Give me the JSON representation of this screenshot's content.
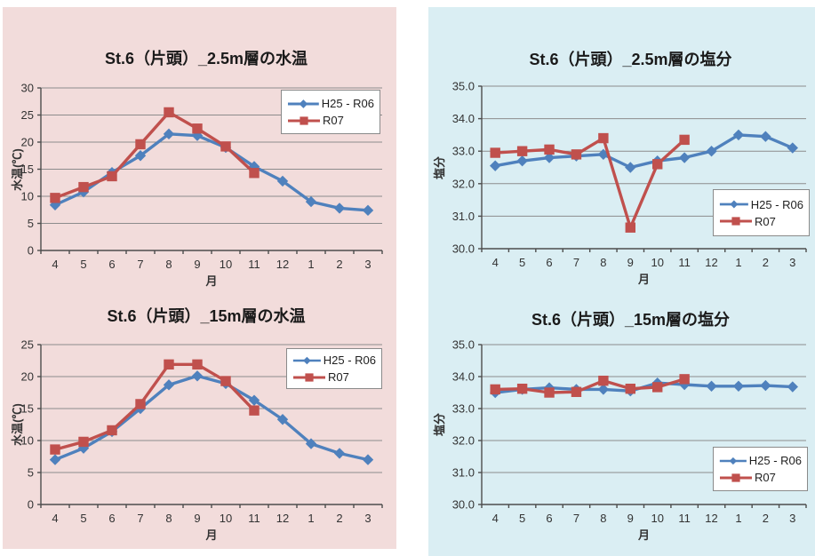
{
  "cards": [
    {
      "id": "water-temp",
      "background": "#F2DCDB"
    },
    {
      "id": "salinity",
      "background": "#DAEEF3"
    }
  ],
  "chart_data": [
    {
      "type": "line",
      "title": "St.6（片頭）_2.5m層の水温",
      "xlabel": "月",
      "ylabel": "水温(℃)",
      "categories": [
        "4",
        "5",
        "6",
        "7",
        "8",
        "9",
        "10",
        "11",
        "12",
        "1",
        "2",
        "3"
      ],
      "ylim": [
        0,
        30
      ],
      "y_ticks": [
        0,
        5,
        10,
        15,
        20,
        25,
        30
      ],
      "y_tick_labels": [
        "0",
        "5",
        "10",
        "15",
        "20",
        "25",
        "30"
      ],
      "grid": true,
      "legend_position": "top-right",
      "series": [
        {
          "name": "H25 - R06",
          "color": "#4F81BD",
          "marker": "diamond",
          "values": [
            8.4,
            10.8,
            14.4,
            17.5,
            21.5,
            21.2,
            19.0,
            15.5,
            12.8,
            9.0,
            7.8,
            7.4
          ]
        },
        {
          "name": "R07",
          "color": "#C0504D",
          "marker": "square",
          "values": [
            9.7,
            11.7,
            13.7,
            19.6,
            25.5,
            22.5,
            19.2,
            14.3,
            null,
            null,
            null,
            null
          ]
        }
      ]
    },
    {
      "type": "line",
      "title": "St.6（片頭）_15m層の水温",
      "xlabel": "月",
      "ylabel": "水温(℃)",
      "categories": [
        "4",
        "5",
        "6",
        "7",
        "8",
        "9",
        "10",
        "11",
        "12",
        "1",
        "2",
        "3"
      ],
      "ylim": [
        0,
        25
      ],
      "y_ticks": [
        0,
        5,
        10,
        15,
        20,
        25
      ],
      "y_tick_labels": [
        "0",
        "5",
        "10",
        "15",
        "20",
        "25"
      ],
      "grid": true,
      "legend_position": "top-right",
      "series": [
        {
          "name": "H25 - R06",
          "color": "#4F81BD",
          "marker": "diamond",
          "values": [
            7.0,
            8.8,
            11.4,
            15.0,
            18.7,
            20.1,
            18.9,
            16.3,
            13.3,
            9.5,
            8.0,
            7.0
          ]
        },
        {
          "name": "R07",
          "color": "#C0504D",
          "marker": "square",
          "values": [
            8.6,
            9.8,
            11.6,
            15.7,
            21.9,
            21.9,
            19.3,
            14.7,
            null,
            null,
            null,
            null
          ]
        }
      ]
    },
    {
      "type": "line",
      "title": "St.6（片頭）_2.5m層の塩分",
      "xlabel": "月",
      "ylabel": "塩分",
      "categories": [
        "4",
        "5",
        "6",
        "7",
        "8",
        "9",
        "10",
        "11",
        "12",
        "1",
        "2",
        "3"
      ],
      "ylim": [
        30,
        35
      ],
      "y_ticks": [
        30,
        31,
        32,
        33,
        34,
        35
      ],
      "y_tick_labels": [
        "30.0",
        "31.0",
        "32.0",
        "33.0",
        "34.0",
        "35.0"
      ],
      "grid": true,
      "legend_position": "mid-right",
      "series": [
        {
          "name": "H25 - R06",
          "color": "#4F81BD",
          "marker": "diamond",
          "values": [
            32.55,
            32.7,
            32.8,
            32.85,
            32.9,
            32.5,
            32.7,
            32.8,
            33.0,
            33.5,
            33.45,
            33.1
          ]
        },
        {
          "name": "R07",
          "color": "#C0504D",
          "marker": "square",
          "values": [
            32.95,
            33.0,
            33.05,
            32.9,
            33.4,
            30.65,
            32.6,
            33.35,
            null,
            null,
            null,
            null
          ]
        }
      ]
    },
    {
      "type": "line",
      "title": "St.6（片頭）_15m層の塩分",
      "xlabel": "月",
      "ylabel": "塩分",
      "categories": [
        "4",
        "5",
        "6",
        "7",
        "8",
        "9",
        "10",
        "11",
        "12",
        "1",
        "2",
        "3"
      ],
      "ylim": [
        30,
        35
      ],
      "y_ticks": [
        30,
        31,
        32,
        33,
        34,
        35
      ],
      "y_tick_labels": [
        "30.0",
        "31.0",
        "32.0",
        "33.0",
        "34.0",
        "35.0"
      ],
      "grid": true,
      "legend_position": "bottom-right",
      "series": [
        {
          "name": "H25 - R06",
          "color": "#4F81BD",
          "marker": "diamond",
          "values": [
            33.5,
            33.6,
            33.65,
            33.6,
            33.6,
            33.55,
            33.8,
            33.75,
            33.7,
            33.7,
            33.72,
            33.68
          ]
        },
        {
          "name": "R07",
          "color": "#C0504D",
          "marker": "square",
          "values": [
            33.6,
            33.62,
            33.5,
            33.52,
            33.87,
            33.62,
            33.67,
            33.92,
            null,
            null,
            null,
            null
          ]
        }
      ]
    }
  ]
}
